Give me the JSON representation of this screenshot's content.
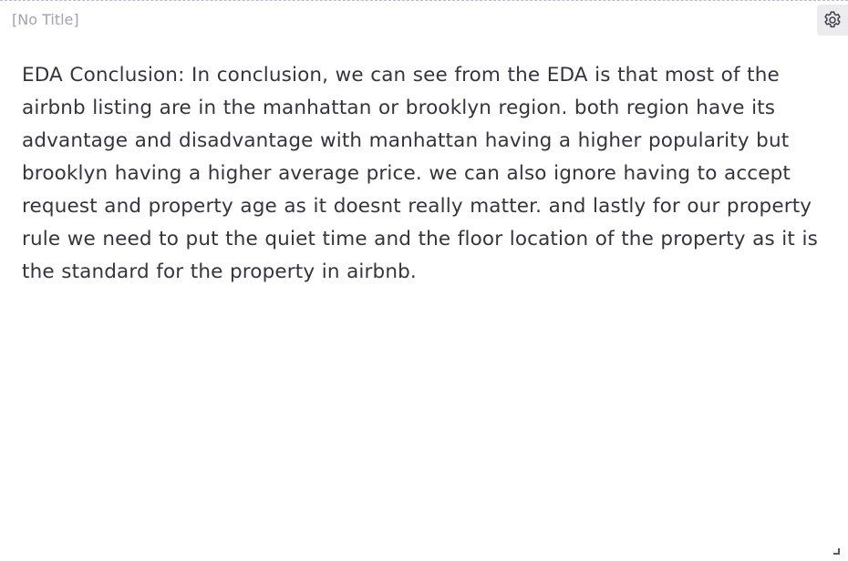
{
  "widget": {
    "title": "[No Title]",
    "settings_icon": "gear-icon",
    "body_text": "EDA Conclusion: In conclusion, we can see from the EDA is that most of the airbnb listing are in the manhattan or brooklyn region. both region have its advantage and disadvantage with manhattan having a higher popularity but brooklyn having a higher average price. we can also ignore having to accept request and property age as it doesnt really matter. and lastly for our property rule we need to put the quiet time and the floor location of the property as it is the standard for the property in airbnb.",
    "resize_icon": "resize-handle-icon"
  },
  "colors": {
    "title": "#a2a2b0",
    "body_text": "#34343e",
    "settings_bg": "#ececee",
    "border": "#b9b9cf"
  }
}
